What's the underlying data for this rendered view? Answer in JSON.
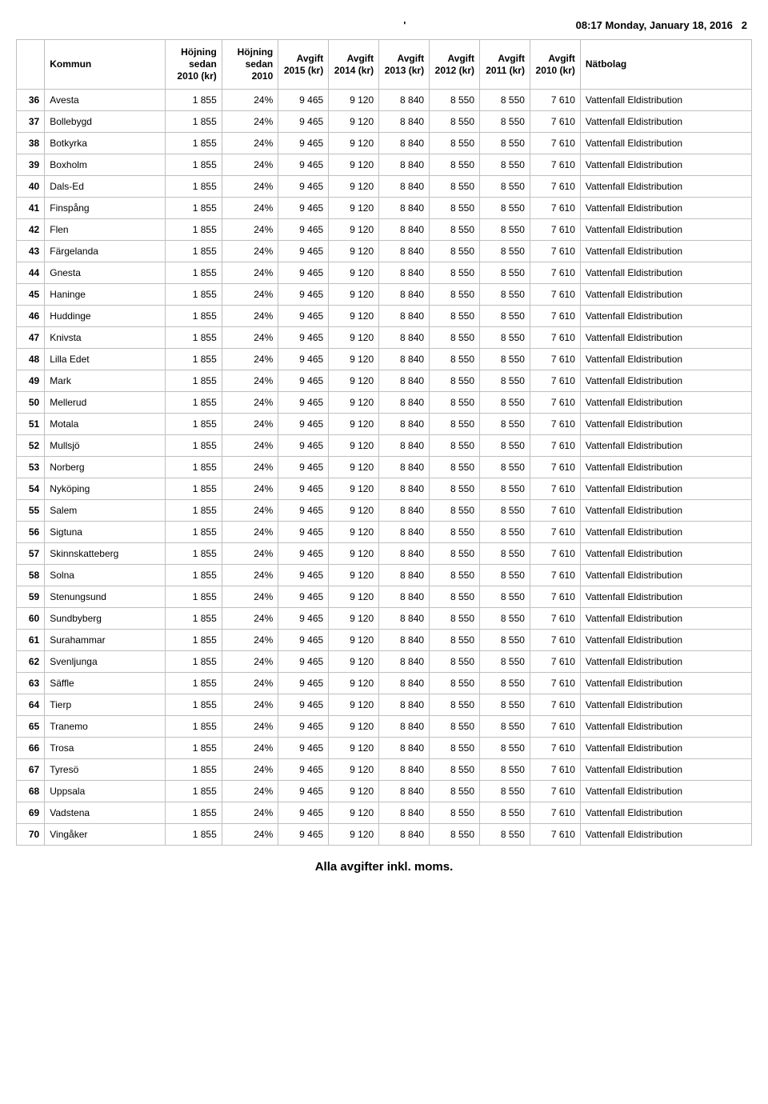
{
  "header": {
    "lead": "'",
    "timestamp": "08:17 Monday, January 18, 2016",
    "page": "2"
  },
  "columns": [
    "",
    "Kommun",
    "Höjning sedan 2010 (kr)",
    "Höjning sedan 2010",
    "Avgift 2015 (kr)",
    "Avgift 2014 (kr)",
    "Avgift 2013 (kr)",
    "Avgift 2012 (kr)",
    "Avgift 2011 (kr)",
    "Avgift 2010 (kr)",
    "Nätbolag"
  ],
  "row_defaults": {
    "hkr": "1 855",
    "hpct": "24%",
    "a2015": "9 465",
    "a2014": "9 120",
    "a2013": "8 840",
    "a2012": "8 550",
    "a2011": "8 550",
    "a2010": "7 610",
    "bolag": "Vattenfall Eldistribution"
  },
  "rows": [
    {
      "n": "36",
      "k": "Avesta"
    },
    {
      "n": "37",
      "k": "Bollebygd"
    },
    {
      "n": "38",
      "k": "Botkyrka"
    },
    {
      "n": "39",
      "k": "Boxholm"
    },
    {
      "n": "40",
      "k": "Dals-Ed"
    },
    {
      "n": "41",
      "k": "Finspång"
    },
    {
      "n": "42",
      "k": "Flen"
    },
    {
      "n": "43",
      "k": "Färgelanda"
    },
    {
      "n": "44",
      "k": "Gnesta"
    },
    {
      "n": "45",
      "k": "Haninge"
    },
    {
      "n": "46",
      "k": "Huddinge"
    },
    {
      "n": "47",
      "k": "Knivsta"
    },
    {
      "n": "48",
      "k": "Lilla Edet"
    },
    {
      "n": "49",
      "k": "Mark"
    },
    {
      "n": "50",
      "k": "Mellerud"
    },
    {
      "n": "51",
      "k": "Motala"
    },
    {
      "n": "52",
      "k": "Mullsjö"
    },
    {
      "n": "53",
      "k": "Norberg"
    },
    {
      "n": "54",
      "k": "Nyköping"
    },
    {
      "n": "55",
      "k": "Salem"
    },
    {
      "n": "56",
      "k": "Sigtuna"
    },
    {
      "n": "57",
      "k": "Skinnskatteberg"
    },
    {
      "n": "58",
      "k": "Solna"
    },
    {
      "n": "59",
      "k": "Stenungsund"
    },
    {
      "n": "60",
      "k": "Sundbyberg"
    },
    {
      "n": "61",
      "k": "Surahammar"
    },
    {
      "n": "62",
      "k": "Svenljunga"
    },
    {
      "n": "63",
      "k": "Säffle"
    },
    {
      "n": "64",
      "k": "Tierp"
    },
    {
      "n": "65",
      "k": "Tranemo"
    },
    {
      "n": "66",
      "k": "Trosa"
    },
    {
      "n": "67",
      "k": "Tyresö"
    },
    {
      "n": "68",
      "k": "Uppsala"
    },
    {
      "n": "69",
      "k": "Vadstena"
    },
    {
      "n": "70",
      "k": "Vingåker"
    }
  ],
  "footer": "Alla avgifter inkl. moms."
}
